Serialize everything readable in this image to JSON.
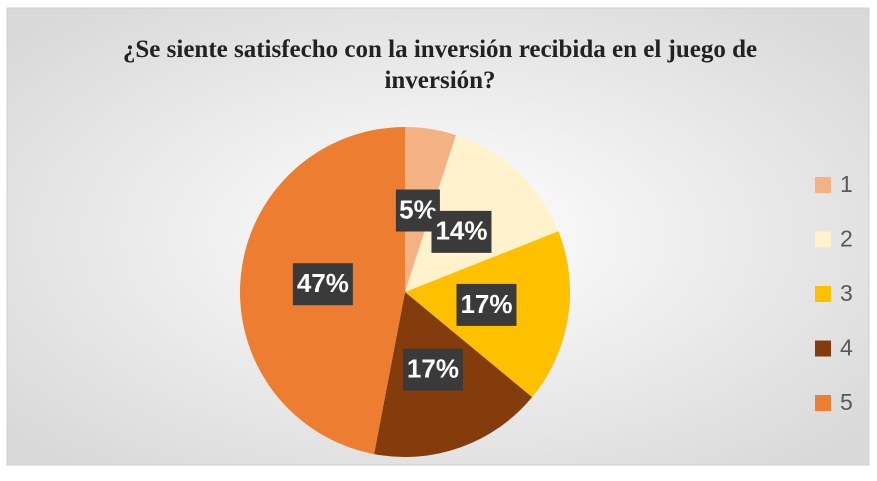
{
  "chart_data": {
    "type": "pie",
    "title": "¿Se siente satisfecho con la inversión recibida en el juego de inversión?",
    "categories": [
      "1",
      "2",
      "3",
      "4",
      "5"
    ],
    "values": [
      5,
      14,
      17,
      17,
      47
    ],
    "value_labels": [
      "5%",
      "14%",
      "17%",
      "17%",
      "47%"
    ],
    "colors": [
      "#f4b183",
      "#fff2cc",
      "#ffc000",
      "#843c0c",
      "#ed7d31"
    ],
    "legend": "right"
  }
}
